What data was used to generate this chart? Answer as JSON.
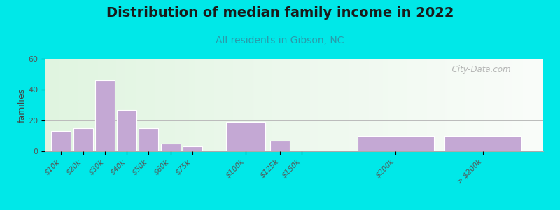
{
  "title": "Distribution of median family income in 2022",
  "subtitle": "All residents in Gibson, NC",
  "ylabel": "families",
  "categories": [
    "$10k",
    "$20k",
    "$30k",
    "$40k",
    "$50k",
    "$60k",
    "$75k",
    "$100k",
    "$125k",
    "$150k",
    "$200k",
    "> $200k"
  ],
  "values": [
    13,
    15,
    46,
    27,
    15,
    5,
    3,
    19,
    7,
    0,
    10,
    10
  ],
  "bar_color": "#c4a8d4",
  "bar_edgecolor": "#ffffff",
  "ylim": [
    0,
    60
  ],
  "yticks": [
    0,
    20,
    40,
    60
  ],
  "background_outer": "#00e8e8",
  "background_inner": "#e8f5e8",
  "watermark": "  City-Data.com",
  "title_fontsize": 14,
  "subtitle_fontsize": 10,
  "ylabel_fontsize": 9,
  "subtitle_color": "#2a9aaa"
}
